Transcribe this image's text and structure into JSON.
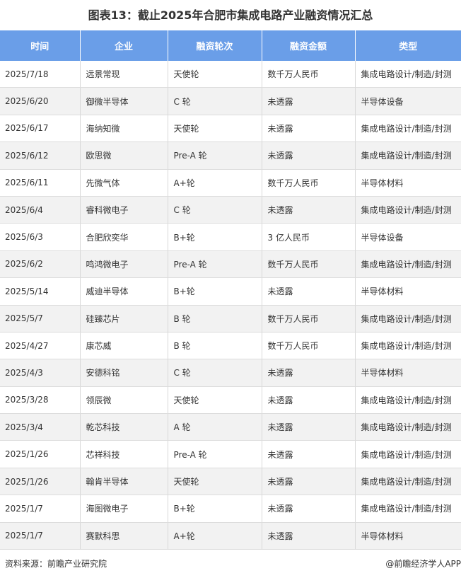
{
  "title": "图表13：截止2025年合肥市集成电路产业融资情况汇总",
  "columns": [
    "时间",
    "企业",
    "融资轮次",
    "融资金额",
    "类型"
  ],
  "rows": [
    [
      "2025/7/18",
      "远景常现",
      "天使轮",
      "数千万人民币",
      "集成电路设计/制造/封测"
    ],
    [
      "2025/6/20",
      "御微半导体",
      "C 轮",
      "未透露",
      "半导体设备"
    ],
    [
      "2025/6/17",
      "海纳知微",
      "天使轮",
      "未透露",
      "集成电路设计/制造/封测"
    ],
    [
      "2025/6/12",
      "欧思微",
      "Pre-A 轮",
      "未透露",
      "集成电路设计/制造/封测"
    ],
    [
      "2025/6/11",
      "先微气体",
      "A+轮",
      "数千万人民币",
      "半导体材料"
    ],
    [
      "2025/6/4",
      "睿科微电子",
      "C 轮",
      "未透露",
      "集成电路设计/制造/封测"
    ],
    [
      "2025/6/3",
      "合肥欣奕华",
      "B+轮",
      "3 亿人民币",
      "半导体设备"
    ],
    [
      "2025/6/2",
      "鸣鸿微电子",
      "Pre-A 轮",
      "数千万人民币",
      "集成电路设计/制造/封测"
    ],
    [
      "2025/5/14",
      "威迪半导体",
      "B+轮",
      "未透露",
      "半导体材料"
    ],
    [
      "2025/5/7",
      "硅臻芯片",
      "B 轮",
      "数千万人民币",
      "集成电路设计/制造/封测"
    ],
    [
      "2025/4/27",
      "康芯威",
      "B 轮",
      "数千万人民币",
      "集成电路设计/制造/封测"
    ],
    [
      "2025/4/3",
      "安德科铭",
      "C 轮",
      "未透露",
      "半导体材料"
    ],
    [
      "2025/3/28",
      "领辰微",
      "天使轮",
      "未透露",
      "集成电路设计/制造/封测"
    ],
    [
      "2025/3/4",
      "乾芯科技",
      "A 轮",
      "未透露",
      "集成电路设计/制造/封测"
    ],
    [
      "2025/1/26",
      "芯祥科技",
      "Pre-A 轮",
      "未透露",
      "集成电路设计/制造/封测"
    ],
    [
      "2025/1/26",
      "翰肯半导体",
      "天使轮",
      "未透露",
      "集成电路设计/制造/封测"
    ],
    [
      "2025/1/7",
      "海图微电子",
      "B+轮",
      "未透露",
      "集成电路设计/制造/封测"
    ],
    [
      "2025/1/7",
      "赛默科思",
      "A+轮",
      "未透露",
      "半导体材料"
    ]
  ],
  "source": "资料来源：前瞻产业研究院",
  "credit": "@前瞻经济学人APP",
  "colors": {
    "header_bg": "#6a9ee8",
    "alt_row_bg": "#f2f2f2"
  }
}
